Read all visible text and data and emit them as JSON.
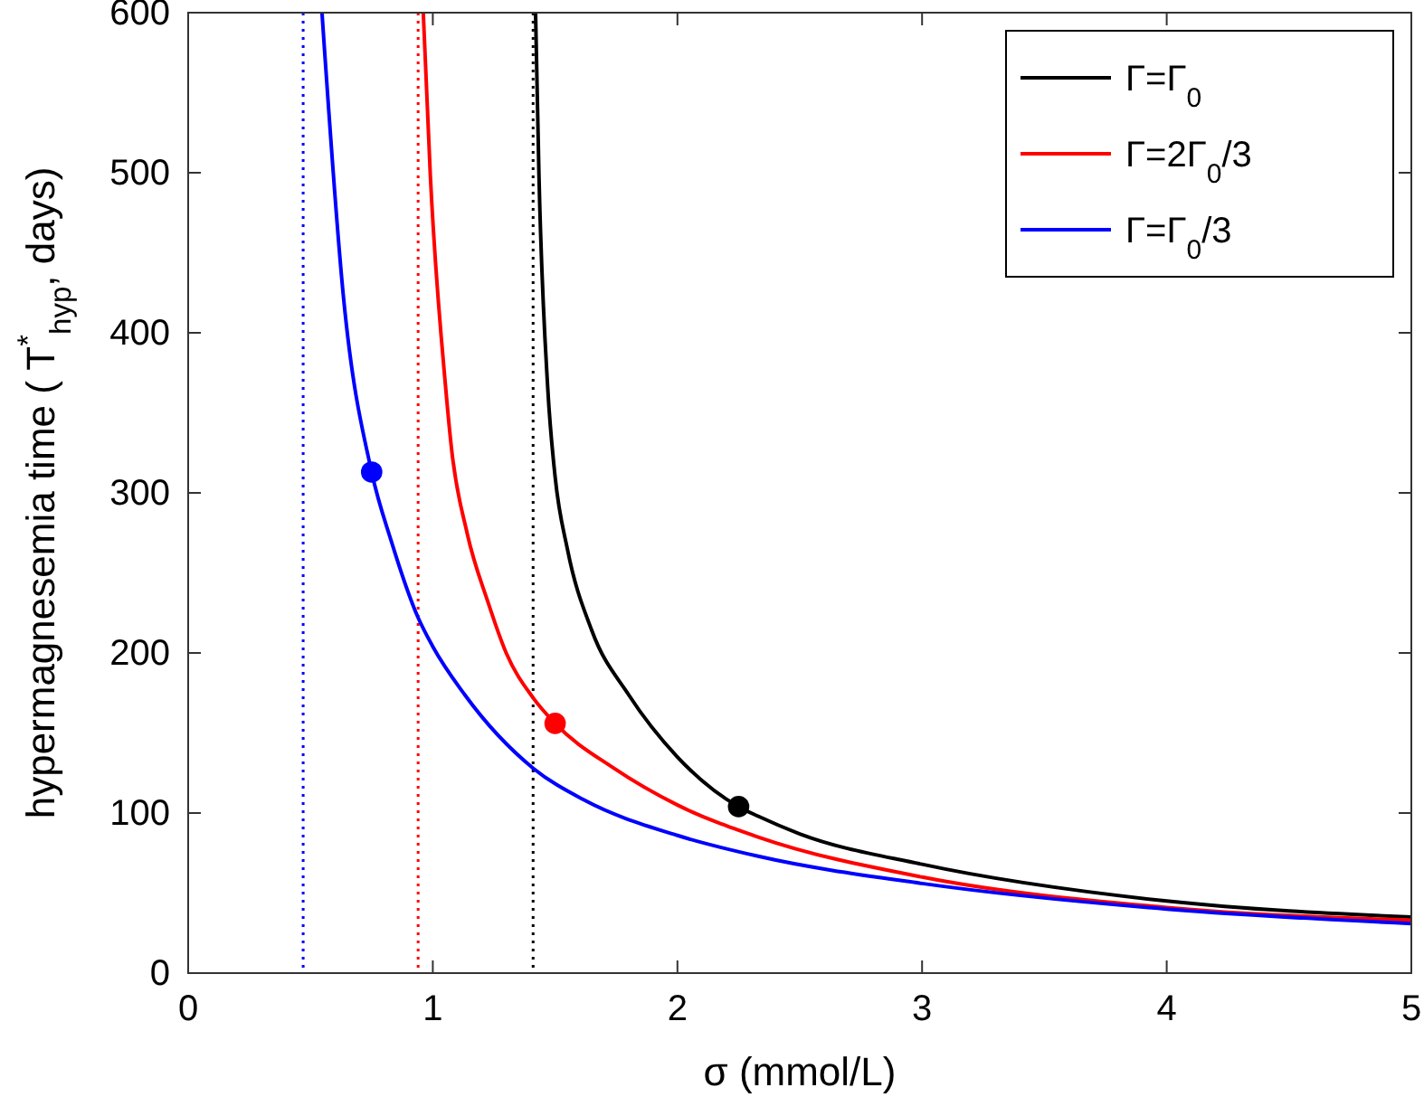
{
  "chart_data": {
    "type": "line",
    "xlabel": "σ (mmol/L)",
    "ylabel": "hypermagnesemia time ( T$^{*}$$_{hyp}$, days)",
    "xlim": [
      0,
      5
    ],
    "ylim": [
      0,
      600
    ],
    "xticks": [
      0,
      1,
      2,
      3,
      4,
      5
    ],
    "yticks": [
      0,
      100,
      200,
      300,
      400,
      500,
      600
    ],
    "grid": false,
    "legend": "top right",
    "line_style": "solid",
    "marker": "none",
    "series": [
      {
        "name": "Γ=Γ$_{0}$",
        "color": "#000000",
        "x": [
          1.42,
          1.434,
          1.47,
          1.5,
          1.55,
          1.65,
          1.8,
          2,
          2.25,
          2.33,
          2.5,
          3,
          4,
          5
        ],
        "values": [
          600,
          498,
          365,
          310,
          265,
          214,
          174,
          135,
          104,
          98,
          87,
          68,
          45,
          35
        ]
      },
      {
        "name": "Γ=2Γ$_{0}$/3",
        "color": "#ff0000",
        "x": [
          0.961,
          0.99,
          1.053,
          1.077,
          1.14,
          1.225,
          1.3,
          1.41,
          1.5,
          1.74,
          2,
          2.33,
          3,
          4,
          5
        ],
        "values": [
          600,
          498,
          365,
          327,
          275,
          232,
          200,
          172,
          156,
          128,
          105,
          85,
          60,
          41,
          33
        ]
      },
      {
        "name": "Γ=Γ$_{0}$/3",
        "color": "#0000ff",
        "x": [
          0.547,
          0.635,
          0.75,
          0.83,
          0.94,
          1,
          1.13,
          1.41,
          1.62,
          2,
          2.33,
          3,
          4,
          5
        ],
        "values": [
          600,
          422,
          313,
          270,
          222,
          204,
          174,
          128,
          108,
          86,
          73,
          56,
          40,
          31
        ]
      },
      {
        "type": "scatter",
        "marker": "circle",
        "color": "#000000",
        "x": [
          2.25
        ],
        "values": [
          104
        ]
      },
      {
        "type": "scatter",
        "marker": "circle",
        "color": "#ff0000",
        "x": [
          1.5
        ],
        "values": [
          156
        ]
      },
      {
        "type": "scatter",
        "marker": "circle",
        "color": "#0000ff",
        "x": [
          0.75
        ],
        "values": [
          313
        ]
      }
    ],
    "ref_lines": [
      {
        "axis": "x",
        "value": 1.41,
        "color": "#000000",
        "line_style": "dotted"
      },
      {
        "axis": "x",
        "value": 0.94,
        "color": "#ff0000",
        "line_style": "dotted"
      },
      {
        "axis": "x",
        "value": 0.47,
        "color": "#0000ff",
        "line_style": "dotted"
      }
    ]
  }
}
